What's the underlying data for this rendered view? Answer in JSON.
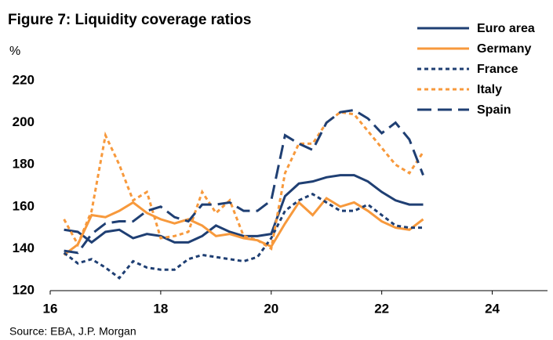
{
  "chart_data": {
    "type": "line",
    "title": "Figure 7: Liquidity coverage ratios",
    "y_label": "%",
    "source": "Source: EBA, J.P. Morgan",
    "x": [
      16.25,
      16.5,
      16.75,
      17,
      17.25,
      17.5,
      17.75,
      18,
      18.25,
      18.5,
      18.75,
      19,
      19.25,
      19.5,
      19.75,
      20,
      20.25,
      20.5,
      20.75,
      21,
      21.25,
      21.5,
      21.75,
      22,
      22.25,
      22.5,
      22.75
    ],
    "xlim": [
      16,
      25
    ],
    "xticks": [
      16,
      18,
      20,
      22,
      24
    ],
    "ylim": [
      120,
      220
    ],
    "yticks": [
      120,
      140,
      160,
      180,
      200,
      220
    ],
    "grid": false,
    "legend": "top-right",
    "series": [
      {
        "name": "Euro area",
        "color": "#1f3f73",
        "dash": "solid",
        "values": [
          149,
          148,
          143,
          148,
          149,
          145,
          147,
          146,
          143,
          143,
          146,
          151,
          148,
          146,
          146,
          147,
          165,
          171,
          172,
          174,
          175,
          175,
          172,
          167,
          163,
          161,
          161
        ]
      },
      {
        "name": "Germany",
        "color": "#f7993c",
        "dash": "solid",
        "values": [
          137,
          142,
          156,
          155,
          158,
          162,
          157,
          154,
          152,
          154,
          151,
          146,
          147,
          145,
          144,
          141,
          152,
          162,
          156,
          164,
          160,
          162,
          158,
          153,
          150,
          149,
          154
        ]
      },
      {
        "name": "France",
        "color": "#1f3f73",
        "dash": "dotted",
        "values": [
          138,
          133,
          135,
          131,
          126,
          134,
          131,
          130,
          130,
          135,
          137,
          136,
          135,
          134,
          136,
          145,
          158,
          163,
          166,
          162,
          158,
          158,
          161,
          156,
          151,
          150,
          150
        ]
      },
      {
        "name": "Italy",
        "color": "#f7993c",
        "dash": "dotted",
        "values": [
          154,
          142,
          158,
          194,
          180,
          163,
          167,
          145,
          146,
          148,
          167,
          157,
          163,
          146,
          144,
          140,
          176,
          190,
          190,
          200,
          205,
          204,
          196,
          188,
          180,
          176,
          186
        ]
      },
      {
        "name": "Spain",
        "color": "#1f3f73",
        "dash": "dashed",
        "values": [
          139,
          138,
          147,
          152,
          153,
          153,
          158,
          160,
          155,
          153,
          161,
          161,
          162,
          158,
          158,
          163,
          194,
          190,
          187,
          200,
          205,
          206,
          202,
          195,
          200,
          192,
          175
        ]
      }
    ]
  }
}
